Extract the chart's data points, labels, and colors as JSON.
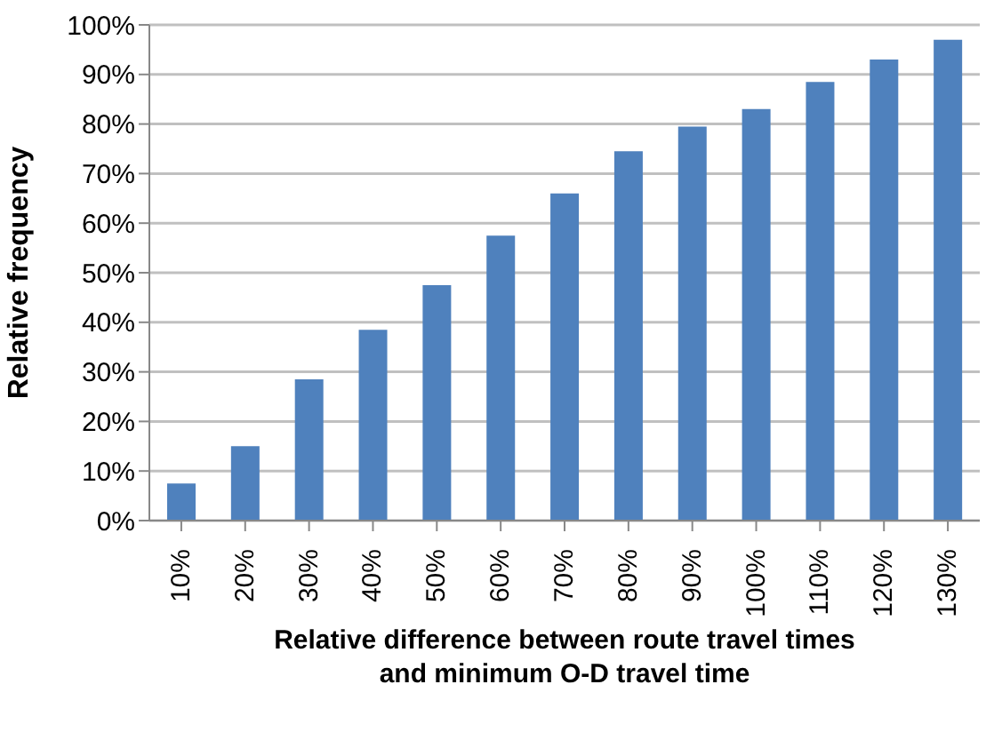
{
  "chart_data": {
    "type": "bar",
    "categories": [
      "10%",
      "20%",
      "30%",
      "40%",
      "50%",
      "60%",
      "70%",
      "80%",
      "90%",
      "100%",
      "110%",
      "120%",
      "130%"
    ],
    "values": [
      7.5,
      15,
      28.5,
      38.5,
      47.5,
      57.5,
      66,
      74.5,
      79.5,
      83,
      88.5,
      93,
      97
    ],
    "color": "#4f81bd",
    "xlabel": "Relative difference between  route travel times\nand minimum O-D travel time",
    "ylabel": "Relative frequency",
    "ylim": [
      0,
      100
    ],
    "yticks": [
      {
        "value": 0,
        "label": "0%"
      },
      {
        "value": 10,
        "label": "10%"
      },
      {
        "value": 20,
        "label": "20%"
      },
      {
        "value": 30,
        "label": "30%"
      },
      {
        "value": 40,
        "label": "40%"
      },
      {
        "value": 50,
        "label": "50%"
      },
      {
        "value": 60,
        "label": "60%"
      },
      {
        "value": 70,
        "label": "70%"
      },
      {
        "value": 80,
        "label": "80%"
      },
      {
        "value": 90,
        "label": "90%"
      },
      {
        "value": 100,
        "label": "100%"
      }
    ],
    "grid": "y"
  }
}
